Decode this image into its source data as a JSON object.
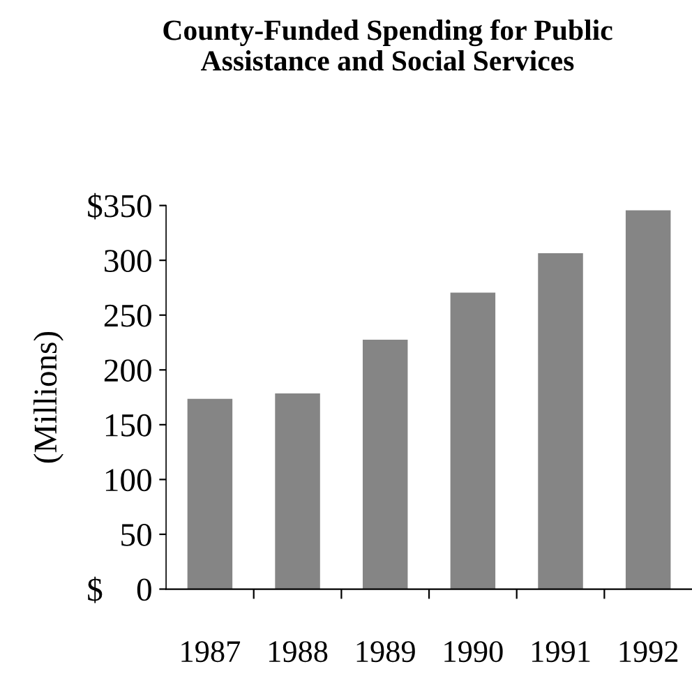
{
  "chart_data": {
    "type": "bar",
    "title": "County-Funded Spending for Public\nAssistance and Social Services",
    "ylabel": "(Millions)",
    "categories": [
      "1987",
      "1988",
      "1989",
      "1990",
      "1991",
      "1992"
    ],
    "values": [
      173,
      178,
      227,
      270,
      306,
      345
    ],
    "color": "#858585",
    "ylim": [
      0,
      350
    ],
    "yticks": [
      {
        "value": 0,
        "label": "$    0"
      },
      50,
      100,
      150,
      200,
      250,
      300,
      {
        "value": 350,
        "label": "$350"
      }
    ],
    "grid": false
  }
}
